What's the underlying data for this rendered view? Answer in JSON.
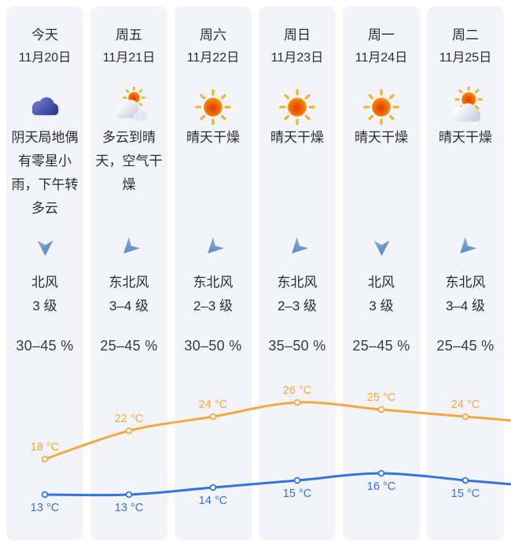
{
  "page": {
    "card_background": "#f3f4f9",
    "wind_arrow_color": "#6090c6",
    "high_series_color": "#f3a93f",
    "low_series_color": "#3274e0"
  },
  "columns": [
    {
      "weekday": "今天",
      "date": "11月20日",
      "icon": "overcast-cloud",
      "description": "阴天局地偶有零星小雨，下午转多云",
      "wind": {
        "direction": "北风",
        "level": "3 级",
        "arrow": "down"
      },
      "humidity": "30–45 %"
    },
    {
      "weekday": "周五",
      "date": "11月21日",
      "icon": "sun-behind-clouds",
      "description": "多云到晴天，空气干燥",
      "wind": {
        "direction": "东北风",
        "level": "3–4 级",
        "arrow": "down-left"
      },
      "humidity": "25–45 %"
    },
    {
      "weekday": "周六",
      "date": "11月22日",
      "icon": "sunny",
      "description": "晴天干燥",
      "wind": {
        "direction": "东北风",
        "level": "2–3 级",
        "arrow": "down-left"
      },
      "humidity": "30–50 %"
    },
    {
      "weekday": "周日",
      "date": "11月23日",
      "icon": "sunny",
      "description": "晴天干燥",
      "wind": {
        "direction": "东北风",
        "level": "2–3 级",
        "arrow": "down-left"
      },
      "humidity": "35–50 %"
    },
    {
      "weekday": "周一",
      "date": "11月24日",
      "icon": "sunny",
      "description": "晴天干燥",
      "wind": {
        "direction": "北风",
        "level": "3 级",
        "arrow": "down"
      },
      "humidity": "25–45 %"
    },
    {
      "weekday": "周二",
      "date": "11月25日",
      "icon": "sun-small-cloud",
      "description": "晴天干燥",
      "wind": {
        "direction": "东北风",
        "level": "3–4 级",
        "arrow": "down-left"
      },
      "humidity": "25–45 %"
    }
  ],
  "chart_data": {
    "type": "line",
    "categories": [
      "今天 11月20日",
      "周五 11月21日",
      "周六 11月22日",
      "周日 11月23日",
      "周一 11月24日",
      "周二 11月25日"
    ],
    "series": [
      {
        "name": "high",
        "values": [
          18,
          22,
          24,
          26,
          25,
          24
        ],
        "color": "#f3a93f",
        "label_position": "above"
      },
      {
        "name": "low",
        "values": [
          13,
          13,
          14,
          15,
          16,
          15
        ],
        "color": "#3274e0",
        "label_position": "below"
      }
    ],
    "unit": "°C",
    "label_format": "{v} °C",
    "ylim": [
      12,
      27
    ],
    "grid": false,
    "legend": "none",
    "markers": "hollow-circle"
  }
}
